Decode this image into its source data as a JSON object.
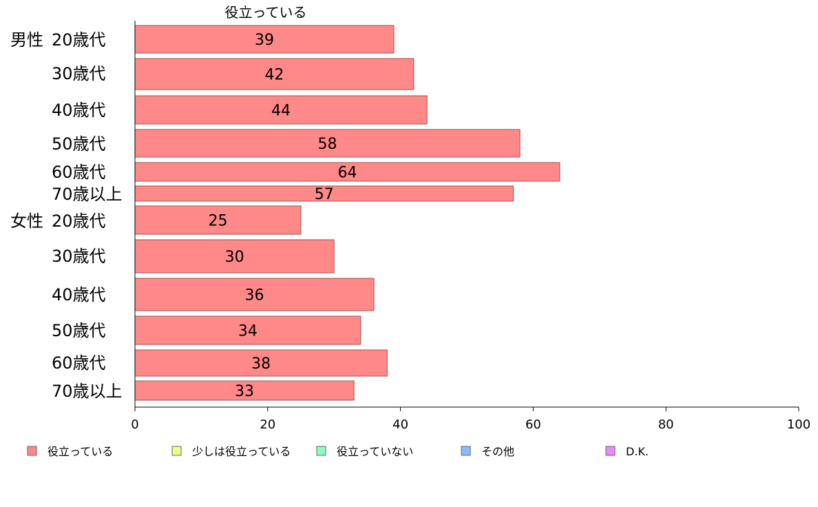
{
  "chart_data": {
    "type": "bar",
    "orientation": "horizontal",
    "title": "役立っている",
    "groups": [
      {
        "label": "男性",
        "categories": [
          "20歳代",
          "30歳代",
          "40歳代",
          "50歳代",
          "60歳代",
          "70歳以上"
        ]
      },
      {
        "label": "女性",
        "categories": [
          "20歳代",
          "30歳代",
          "40歳代",
          "50歳代",
          "60歳代",
          "70歳以上"
        ]
      }
    ],
    "series": [
      {
        "name": "役立っている",
        "color": "#ff8888",
        "values": [
          39,
          42,
          44,
          58,
          64,
          57,
          25,
          30,
          36,
          34,
          38,
          33
        ]
      }
    ],
    "xlim": [
      0,
      100
    ],
    "xticks": [
      0,
      20,
      40,
      60,
      80,
      100
    ],
    "grid": false,
    "legend": {
      "placement": "bottom",
      "entries": [
        {
          "label": "役立っている",
          "color": "#ff8888"
        },
        {
          "label": "少しは役立っている",
          "color": "#eeff88"
        },
        {
          "label": "役立っていない",
          "color": "#88ffbb"
        },
        {
          "label": "その他",
          "color": "#88bbff"
        },
        {
          "label": "D.K.",
          "color": "#ee88ff"
        }
      ]
    }
  }
}
